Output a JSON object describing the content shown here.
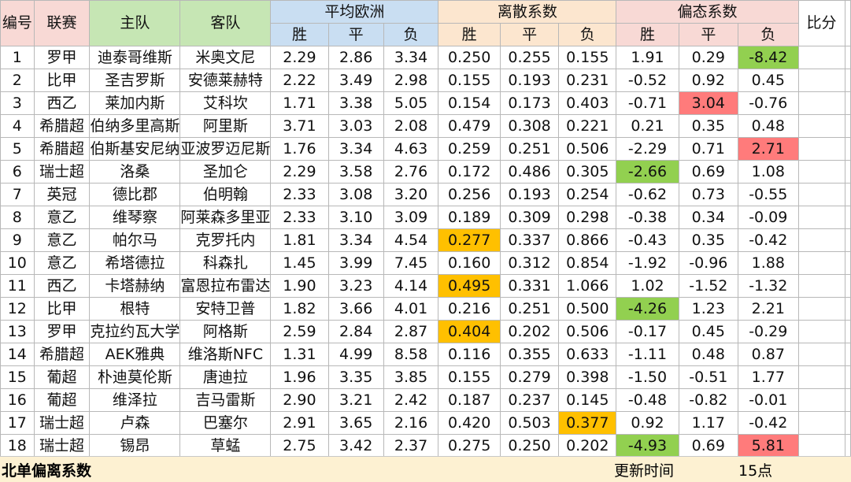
{
  "headers": {
    "no": "编号",
    "league": "联赛",
    "home": "主队",
    "away": "客队",
    "avg_euro": "平均欧洲",
    "dispersion": "离散系数",
    "skew": "偏态系数",
    "score": "比分",
    "win": "胜",
    "draw": "平",
    "lose": "负"
  },
  "rows": [
    {
      "no": "1",
      "league": "罗甲",
      "home": "迪泰哥维斯",
      "away": "米奥文尼",
      "o": [
        "2.29",
        "2.86",
        "3.34"
      ],
      "d": [
        "0.250",
        "0.255",
        "0.155"
      ],
      "s": [
        "1.91",
        "0.29",
        "-8.42"
      ],
      "score": ""
    },
    {
      "no": "2",
      "league": "比甲",
      "home": "圣吉罗斯",
      "away": "安德莱赫特",
      "o": [
        "2.22",
        "3.49",
        "2.98"
      ],
      "d": [
        "0.155",
        "0.193",
        "0.231"
      ],
      "s": [
        "-0.52",
        "0.92",
        "0.45"
      ],
      "score": ""
    },
    {
      "no": "3",
      "league": "西乙",
      "home": "莱加内斯",
      "away": "艾科坎",
      "o": [
        "1.71",
        "3.38",
        "5.05"
      ],
      "d": [
        "0.154",
        "0.173",
        "0.403"
      ],
      "s": [
        "-0.71",
        "3.04",
        "-0.76"
      ],
      "score": ""
    },
    {
      "no": "4",
      "league": "希腊超",
      "home": "伯纳多里高斯",
      "away": "阿里斯",
      "o": [
        "3.71",
        "3.03",
        "2.08"
      ],
      "d": [
        "0.479",
        "0.308",
        "0.221"
      ],
      "s": [
        "0.21",
        "0.35",
        "0.48"
      ],
      "score": ""
    },
    {
      "no": "5",
      "league": "希腊超",
      "home": "伯斯基安尼纳",
      "away": "亚波罗迈尼斯",
      "o": [
        "1.76",
        "3.34",
        "4.63"
      ],
      "d": [
        "0.259",
        "0.251",
        "0.506"
      ],
      "s": [
        "-2.29",
        "0.71",
        "2.71"
      ],
      "score": ""
    },
    {
      "no": "6",
      "league": "瑞士超",
      "home": "洛桑",
      "away": "圣加仑",
      "o": [
        "2.29",
        "3.58",
        "2.76"
      ],
      "d": [
        "0.172",
        "0.486",
        "0.305"
      ],
      "s": [
        "-2.66",
        "0.69",
        "1.08"
      ],
      "score": ""
    },
    {
      "no": "7",
      "league": "英冠",
      "home": "德比郡",
      "away": "伯明翰",
      "o": [
        "2.33",
        "3.08",
        "3.20"
      ],
      "d": [
        "0.256",
        "0.193",
        "0.254"
      ],
      "s": [
        "-0.62",
        "0.73",
        "-0.55"
      ],
      "score": ""
    },
    {
      "no": "8",
      "league": "意乙",
      "home": "维琴察",
      "away": "阿莱森多里亚",
      "o": [
        "2.33",
        "3.10",
        "3.09"
      ],
      "d": [
        "0.189",
        "0.309",
        "0.298"
      ],
      "s": [
        "-0.38",
        "0.34",
        "-0.09"
      ],
      "score": ""
    },
    {
      "no": "9",
      "league": "意乙",
      "home": "帕尔马",
      "away": "克罗托内",
      "o": [
        "1.81",
        "3.34",
        "4.54"
      ],
      "d": [
        "0.277",
        "0.337",
        "0.866"
      ],
      "s": [
        "-0.43",
        "0.35",
        "-0.42"
      ],
      "score": ""
    },
    {
      "no": "10",
      "league": "意乙",
      "home": "希塔德拉",
      "away": "科森扎",
      "o": [
        "1.45",
        "3.99",
        "7.45"
      ],
      "d": [
        "0.160",
        "0.312",
        "0.854"
      ],
      "s": [
        "-1.92",
        "-0.96",
        "1.88"
      ],
      "score": ""
    },
    {
      "no": "11",
      "league": "西乙",
      "home": "卡塔赫纳",
      "away": "富恩拉布雷达",
      "o": [
        "1.90",
        "3.23",
        "4.14"
      ],
      "d": [
        "0.495",
        "0.331",
        "1.066"
      ],
      "s": [
        "1.02",
        "-1.52",
        "-1.32"
      ],
      "score": ""
    },
    {
      "no": "12",
      "league": "比甲",
      "home": "根特",
      "away": "安特卫普",
      "o": [
        "1.82",
        "3.66",
        "4.01"
      ],
      "d": [
        "0.216",
        "0.251",
        "0.500"
      ],
      "s": [
        "-4.26",
        "1.23",
        "2.21"
      ],
      "score": ""
    },
    {
      "no": "13",
      "league": "罗甲",
      "home": "克拉约瓦大学",
      "away": "阿格斯",
      "o": [
        "2.59",
        "2.84",
        "2.87"
      ],
      "d": [
        "0.404",
        "0.202",
        "0.506"
      ],
      "s": [
        "-0.17",
        "0.45",
        "-0.29"
      ],
      "score": ""
    },
    {
      "no": "14",
      "league": "希腊超",
      "home": "AEK雅典",
      "away": "维洛斯NFC",
      "o": [
        "1.31",
        "4.99",
        "8.58"
      ],
      "d": [
        "0.116",
        "0.355",
        "0.633"
      ],
      "s": [
        "-1.11",
        "0.48",
        "0.87"
      ],
      "score": ""
    },
    {
      "no": "15",
      "league": "葡超",
      "home": "朴迪莫伦斯",
      "away": "唐迪拉",
      "o": [
        "1.96",
        "3.35",
        "3.85"
      ],
      "d": [
        "0.155",
        "0.279",
        "0.398"
      ],
      "s": [
        "-1.50",
        "-0.51",
        "1.77"
      ],
      "score": ""
    },
    {
      "no": "16",
      "league": "葡超",
      "home": "维泽拉",
      "away": "吉马雷斯",
      "o": [
        "2.90",
        "3.21",
        "2.42"
      ],
      "d": [
        "0.187",
        "0.237",
        "0.145"
      ],
      "s": [
        "-0.48",
        "-0.82",
        "-0.01"
      ],
      "score": ""
    },
    {
      "no": "17",
      "league": "瑞士超",
      "home": "卢森",
      "away": "巴塞尔",
      "o": [
        "2.91",
        "3.65",
        "2.16"
      ],
      "d": [
        "0.420",
        "0.503",
        "0.377"
      ],
      "s": [
        "0.92",
        "1.17",
        "-0.42"
      ],
      "score": ""
    },
    {
      "no": "18",
      "league": "瑞士超",
      "home": "锡昂",
      "away": "草蜢",
      "o": [
        "2.75",
        "3.42",
        "2.37"
      ],
      "d": [
        "0.275",
        "0.250",
        "0.202"
      ],
      "s": [
        "-4.93",
        "0.69",
        "5.81"
      ],
      "score": ""
    }
  ],
  "highlights": {
    "colors": {
      "orange": "#ffc000",
      "green": "#92d050",
      "red": "#ff7b7b"
    },
    "cells": [
      {
        "row": 0,
        "group": "s",
        "col": 2,
        "color": "green"
      },
      {
        "row": 2,
        "group": "s",
        "col": 1,
        "color": "red"
      },
      {
        "row": 4,
        "group": "s",
        "col": 2,
        "color": "red"
      },
      {
        "row": 5,
        "group": "s",
        "col": 0,
        "color": "green"
      },
      {
        "row": 8,
        "group": "d",
        "col": 0,
        "color": "orange"
      },
      {
        "row": 10,
        "group": "d",
        "col": 0,
        "color": "orange"
      },
      {
        "row": 11,
        "group": "s",
        "col": 0,
        "color": "green"
      },
      {
        "row": 12,
        "group": "d",
        "col": 0,
        "color": "orange"
      },
      {
        "row": 16,
        "group": "d",
        "col": 2,
        "color": "orange"
      },
      {
        "row": 17,
        "group": "s",
        "col": 0,
        "color": "green"
      },
      {
        "row": 17,
        "group": "s",
        "col": 2,
        "color": "red"
      }
    ]
  },
  "footer": {
    "title": "北单偏离系数",
    "update_label": "更新时间",
    "update_time": "15点"
  }
}
